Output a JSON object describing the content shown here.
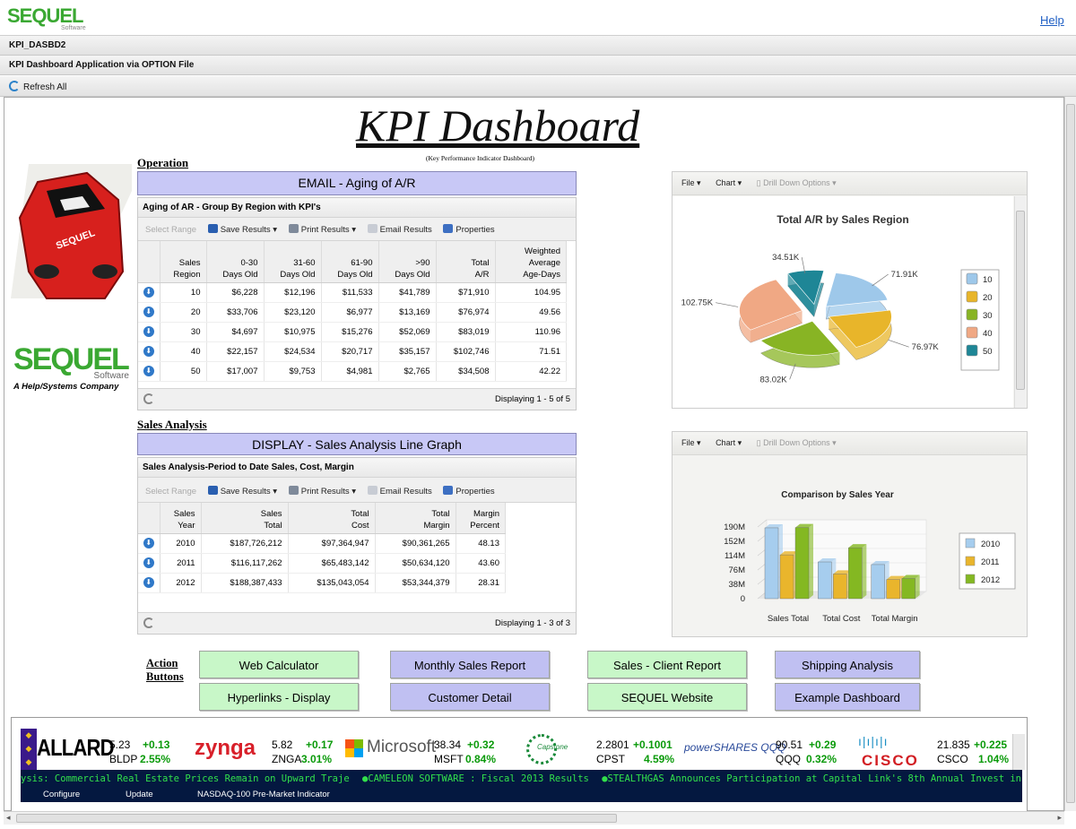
{
  "app": {
    "logo_text": "SEQUEL",
    "logo_sub": "Software",
    "help_link": "Help"
  },
  "bars": {
    "object_name": "KPI_DASBD2",
    "description": "KPI Dashboard Application via OPTION File",
    "refresh_label": "Refresh All"
  },
  "dashboard": {
    "title": "KPI Dashboard",
    "subtitle": "(Key Performance Indicator Dashboard)"
  },
  "branding": {
    "name": "SEQUEL",
    "software": "Software",
    "company": "A Help/Systems Company"
  },
  "operation": {
    "section_label": "Operation",
    "header_button": "EMAIL - Aging of A/R",
    "panel_title": "Aging of AR - Group By Region with KPI's",
    "toolbar": {
      "select_range": "Select Range",
      "save": "Save Results",
      "print": "Print Results",
      "email": "Email Results",
      "properties": "Properties"
    },
    "columns": [
      [
        "Sales",
        "Region"
      ],
      [
        "0-30",
        "Days Old"
      ],
      [
        "31-60",
        "Days Old"
      ],
      [
        "61-90",
        "Days Old"
      ],
      [
        ">90",
        "Days Old"
      ],
      [
        "Total",
        "A/R"
      ],
      [
        "Weighted",
        "Average",
        "Age-Days"
      ]
    ],
    "rows": [
      [
        "10",
        "$6,228",
        "$12,196",
        "$11,533",
        "$41,789",
        "$71,910",
        "104.95"
      ],
      [
        "20",
        "$33,706",
        "$23,120",
        "$6,977",
        "$13,169",
        "$76,974",
        "49.56"
      ],
      [
        "30",
        "$4,697",
        "$10,975",
        "$15,276",
        "$52,069",
        "$83,019",
        "110.96"
      ],
      [
        "40",
        "$22,157",
        "$24,534",
        "$20,717",
        "$35,157",
        "$102,746",
        "71.51"
      ],
      [
        "50",
        "$17,007",
        "$9,753",
        "$4,981",
        "$2,765",
        "$34,508",
        "42.22"
      ]
    ],
    "footer": "Displaying 1 - 5 of 5"
  },
  "sales": {
    "section_label": "Sales Analysis",
    "header_button": "DISPLAY - Sales Analysis Line Graph",
    "panel_title": "Sales Analysis-Period to Date Sales, Cost, Margin",
    "toolbar": {
      "select_range": "Select Range",
      "save": "Save Results",
      "print": "Print Results",
      "email": "Email Results",
      "properties": "Properties"
    },
    "columns": [
      [
        "Sales",
        "Year"
      ],
      [
        "Sales",
        "Total"
      ],
      [
        "Total",
        "Cost"
      ],
      [
        "Total",
        "Margin"
      ],
      [
        "Margin",
        "Percent"
      ]
    ],
    "rows": [
      [
        "2010",
        "$187,726,212",
        "$97,364,947",
        "$90,361,265",
        "48.13"
      ],
      [
        "2011",
        "$116,117,262",
        "$65,483,142",
        "$50,634,120",
        "43.60"
      ],
      [
        "2012",
        "$188,387,433",
        "$135,043,054",
        "$53,344,379",
        "28.31"
      ]
    ],
    "footer": "Displaying 1 - 3 of 3"
  },
  "chart_tools": {
    "file": "File",
    "chart": "Chart",
    "drill": "Drill Down Options"
  },
  "chart_data": [
    {
      "type": "pie",
      "title": "Total A/R by Sales Region",
      "categories": [
        "10",
        "20",
        "30",
        "40",
        "50"
      ],
      "values": [
        71.91,
        76.97,
        83.02,
        102.75,
        34.51
      ],
      "data_labels": [
        "71.91K",
        "76.97K",
        "83.02K",
        "102.75K",
        "34.51K"
      ],
      "colors": [
        "#9ec8ea",
        "#e8b52a",
        "#88b424",
        "#f0a884",
        "#1e8696"
      ],
      "legend_position": "right"
    },
    {
      "type": "bar",
      "title": "Comparison by Sales Year",
      "categories": [
        "Sales Total",
        "Total Cost",
        "Total Margin"
      ],
      "series": [
        {
          "name": "2010",
          "values": [
            187.73,
            97.36,
            90.36
          ],
          "color": "#a6cdee"
        },
        {
          "name": "2011",
          "values": [
            116.12,
            65.48,
            50.63
          ],
          "color": "#e9b52c"
        },
        {
          "name": "2012",
          "values": [
            188.39,
            135.04,
            53.34
          ],
          "color": "#84b822"
        }
      ],
      "ytick_labels": [
        "0",
        "38M",
        "76M",
        "114M",
        "152M",
        "190M"
      ],
      "ylim": [
        0,
        190
      ],
      "legend_position": "right"
    }
  ],
  "actions": {
    "label_line1": "Action",
    "label_line2": "Buttons",
    "buttons": [
      "Web Calculator",
      "Monthly Sales Report",
      "Sales - Client Report",
      "Shipping Analysis",
      "Hyperlinks - Display",
      "Customer Detail",
      "SEQUEL Website",
      "Example Dashboard"
    ]
  },
  "ticker": {
    "quotes": [
      {
        "logo": "ALLARD",
        "price": "5.23",
        "change": "+0.13",
        "symbol": "BLDP",
        "pct": "2.55%"
      },
      {
        "logo": "zynga",
        "price": "5.82",
        "change": "+0.17",
        "symbol": "ZNGA",
        "pct": "3.01%"
      },
      {
        "logo": "Microsoft",
        "price": "38.34",
        "change": "+0.32",
        "symbol": "MSFT",
        "pct": "0.84%"
      },
      {
        "logo": "Capstone",
        "price": "2.2801",
        "change": "+0.1001",
        "symbol": "CPST",
        "pct": "4.59%"
      },
      {
        "logo": "powerSHARES QQQ",
        "price": "90.51",
        "change": "+0.29",
        "symbol": "QQQ",
        "pct": "0.32%"
      },
      {
        "logo": "CISCO",
        "price": "21.835",
        "change": "+0.225",
        "symbol": "CSCO",
        "pct": "1.04%"
      }
    ],
    "news": [
      "ysis: Commercial Real Estate Prices Remain on Upward Traje",
      "CAMELEON SOFTWARE : Fiscal 2013 Results",
      "STEALTHGAS Announces Participation at Capital Link's 8th Annual Invest in International Shipping Fo"
    ],
    "footer": {
      "configure": "Configure",
      "update": "Update",
      "indicator": "NASDAQ-100 Pre-Market Indicator"
    }
  },
  "colors": {
    "header_purple": "#c8c8f6",
    "button_green": "#c8f7c8",
    "button_purple": "#c0c0f2",
    "ticker_bg": "#041840",
    "ticker_text": "#32e04b"
  }
}
